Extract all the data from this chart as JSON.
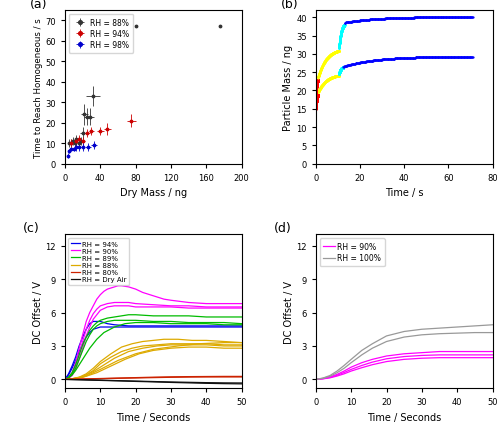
{
  "panel_a": {
    "rh88": {
      "x": [
        5,
        7,
        9,
        11,
        13,
        16,
        18,
        20,
        22,
        25,
        28,
        32,
        80,
        175
      ],
      "y": [
        10,
        10,
        11,
        10,
        12,
        10,
        11,
        15,
        24,
        23,
        23,
        33,
        67,
        67
      ],
      "xerr": [
        2,
        2,
        2,
        2,
        2,
        2,
        2,
        3,
        4,
        4,
        5,
        8,
        0,
        0
      ],
      "yerr": [
        2,
        2,
        2,
        2,
        2,
        2,
        2,
        3,
        5,
        4,
        4,
        5,
        0,
        0
      ],
      "color": "#333333",
      "label": "RH = 88%"
    },
    "rh94": {
      "x": [
        7,
        12,
        16,
        20,
        25,
        30,
        40,
        48,
        75
      ],
      "y": [
        10,
        11,
        12,
        11,
        15,
        16,
        16,
        17,
        21
      ],
      "xerr": [
        2,
        2,
        2,
        3,
        3,
        3,
        4,
        4,
        5
      ],
      "yerr": [
        2,
        2,
        2,
        2,
        2,
        2,
        2,
        3,
        3
      ],
      "color": "#cc0000",
      "label": "RH = 94%"
    },
    "rh98": {
      "x": [
        3,
        5,
        7,
        10,
        13,
        16,
        20,
        26,
        33
      ],
      "y": [
        4,
        6,
        7,
        7,
        8,
        8,
        8,
        8,
        9
      ],
      "xerr": [
        1,
        1,
        2,
        2,
        2,
        2,
        2,
        3,
        3
      ],
      "yerr": [
        1,
        1,
        1,
        1,
        2,
        2,
        2,
        2,
        2
      ],
      "color": "#0000cc",
      "label": "RH = 98%"
    },
    "xlabel": "Dry Mass / ng",
    "ylabel": "Time to Reach Homogeneous / s",
    "xlim": [
      0,
      200
    ],
    "ylim": [
      0,
      75
    ],
    "yticks": [
      0,
      10,
      20,
      30,
      40,
      50,
      60,
      70
    ],
    "xticks": [
      0,
      40,
      80,
      120,
      160,
      200
    ]
  },
  "panel_b": {
    "particle1_color_segments": [
      {
        "color": "#ff0000",
        "tstart": 0.0,
        "tend": 1.0,
        "mstart": 15.0,
        "mend": 19.5
      },
      {
        "color": "#ffff00",
        "tstart": 1.0,
        "tend": 10.5,
        "mstart": 19.5,
        "mend": 24.5
      },
      {
        "color": "#00ffff",
        "tstart": 10.5,
        "tend": 12.5,
        "mstart": 24.5,
        "mend": 26.5
      },
      {
        "color": "#0000ff",
        "tstart": 12.5,
        "tend": 71.0,
        "mstart": 26.5,
        "mend": 29.3
      }
    ],
    "particle2_color_segments": [
      {
        "color": "#ff0000",
        "tstart": 0.0,
        "tend": 1.0,
        "mstart": 19.0,
        "mend": 23.5
      },
      {
        "color": "#ffff00",
        "tstart": 1.0,
        "tend": 10.5,
        "mstart": 23.5,
        "mend": 31.5
      },
      {
        "color": "#00ffff",
        "tstart": 10.5,
        "tend": 13.0,
        "mstart": 31.5,
        "mend": 38.5
      },
      {
        "color": "#0000ff",
        "tstart": 13.0,
        "tend": 71.0,
        "mstart": 38.5,
        "mend": 40.1
      }
    ],
    "xlabel": "Time / s",
    "ylabel": "Particle Mass / ng",
    "xlim": [
      0,
      80
    ],
    "ylim": [
      0,
      42
    ],
    "yticks": [
      0,
      5,
      10,
      15,
      20,
      25,
      30,
      35,
      40
    ],
    "xticks": [
      0,
      20,
      40,
      60,
      80
    ]
  },
  "panel_c": {
    "curves": [
      {
        "color": "#0000ee",
        "label": "RH = 94%",
        "t": [
          0,
          1,
          2,
          3,
          4,
          5,
          6,
          7,
          8,
          9,
          10,
          11,
          12,
          14,
          16,
          18,
          20,
          25,
          30,
          35,
          40,
          45,
          50
        ],
        "v": [
          0,
          0.5,
          1.2,
          2.0,
          3.0,
          3.8,
          4.5,
          5.0,
          5.2,
          5.2,
          5.2,
          5.1,
          5.0,
          4.9,
          4.85,
          4.8,
          4.8,
          4.8,
          4.8,
          4.8,
          4.8,
          4.8,
          4.8
        ]
      },
      {
        "color": "#0000ee",
        "label": null,
        "t": [
          0,
          1,
          2,
          3,
          4,
          5,
          6,
          7,
          8,
          9,
          10,
          12,
          15,
          20,
          25,
          30,
          35,
          40,
          45,
          50
        ],
        "v": [
          0,
          0.4,
          1.0,
          1.7,
          2.5,
          3.2,
          3.8,
          4.2,
          4.5,
          4.6,
          4.7,
          4.7,
          4.7,
          4.7,
          4.7,
          4.7,
          4.7,
          4.7,
          4.7,
          4.7
        ]
      },
      {
        "color": "#ff00ff",
        "label": "RH = 90%",
        "t": [
          0,
          1,
          2,
          3,
          4,
          5,
          6,
          7,
          8,
          9,
          10,
          11,
          12,
          13,
          14,
          15,
          16,
          18,
          20,
          22,
          24,
          26,
          28,
          30,
          35,
          40,
          45,
          50
        ],
        "v": [
          0,
          0.2,
          0.6,
          1.5,
          2.8,
          4.0,
          5.2,
          6.0,
          6.6,
          7.2,
          7.6,
          7.9,
          8.1,
          8.2,
          8.3,
          8.4,
          8.4,
          8.3,
          8.1,
          7.8,
          7.6,
          7.4,
          7.2,
          7.1,
          6.9,
          6.8,
          6.8,
          6.8
        ]
      },
      {
        "color": "#ff00ff",
        "label": null,
        "t": [
          0,
          1,
          2,
          3,
          4,
          5,
          6,
          7,
          8,
          9,
          10,
          12,
          14,
          16,
          18,
          20,
          25,
          30,
          35,
          40,
          45,
          50
        ],
        "v": [
          0,
          0.15,
          0.5,
          1.2,
          2.2,
          3.4,
          4.5,
          5.3,
          5.9,
          6.3,
          6.6,
          6.8,
          6.9,
          6.9,
          6.9,
          6.8,
          6.7,
          6.6,
          6.6,
          6.5,
          6.5,
          6.5
        ]
      },
      {
        "color": "#ff00ff",
        "label": null,
        "t": [
          0,
          1,
          2,
          3,
          4,
          5,
          6,
          7,
          8,
          9,
          10,
          12,
          14,
          16,
          18,
          20,
          25,
          30,
          35,
          40,
          45,
          50
        ],
        "v": [
          0,
          0.1,
          0.35,
          0.9,
          1.8,
          2.8,
          3.9,
          4.7,
          5.4,
          5.8,
          6.2,
          6.5,
          6.6,
          6.6,
          6.6,
          6.5,
          6.5,
          6.5,
          6.4,
          6.4,
          6.4,
          6.4
        ]
      },
      {
        "color": "#00bb00",
        "label": "RH = 89%",
        "t": [
          0,
          1,
          2,
          3,
          4,
          5,
          6,
          7,
          8,
          9,
          10,
          12,
          14,
          16,
          18,
          20,
          25,
          30,
          35,
          40,
          45,
          50
        ],
        "v": [
          0,
          0.2,
          0.6,
          1.3,
          2.2,
          3.1,
          3.8,
          4.4,
          4.8,
          5.1,
          5.3,
          5.5,
          5.6,
          5.7,
          5.8,
          5.8,
          5.7,
          5.7,
          5.7,
          5.6,
          5.6,
          5.6
        ]
      },
      {
        "color": "#00bb00",
        "label": null,
        "t": [
          0,
          1,
          2,
          3,
          4,
          5,
          6,
          7,
          8,
          9,
          10,
          12,
          14,
          16,
          18,
          20,
          25,
          30,
          35,
          40,
          45,
          50
        ],
        "v": [
          0,
          0.15,
          0.45,
          1.0,
          1.8,
          2.6,
          3.4,
          4.0,
          4.5,
          4.8,
          5.0,
          5.2,
          5.3,
          5.3,
          5.3,
          5.3,
          5.2,
          5.2,
          5.1,
          5.1,
          5.1,
          5.0
        ]
      },
      {
        "color": "#00bb00",
        "label": null,
        "t": [
          0,
          1,
          2,
          3,
          5,
          7,
          9,
          11,
          14,
          17,
          20,
          25,
          30,
          35,
          40,
          45,
          50
        ],
        "v": [
          0,
          0.15,
          0.4,
          0.8,
          1.8,
          2.8,
          3.6,
          4.2,
          4.7,
          5.0,
          5.1,
          5.1,
          5.0,
          5.0,
          5.0,
          4.9,
          4.9
        ]
      },
      {
        "color": "#ddaa00",
        "label": "RH = 88%",
        "t": [
          0,
          2,
          4,
          6,
          8,
          10,
          13,
          16,
          19,
          22,
          25,
          28,
          32,
          36,
          40,
          45,
          50
        ],
        "v": [
          0,
          0.06,
          0.2,
          0.5,
          1.0,
          1.6,
          2.3,
          2.9,
          3.2,
          3.4,
          3.5,
          3.6,
          3.6,
          3.5,
          3.5,
          3.4,
          3.3
        ]
      },
      {
        "color": "#ddaa00",
        "label": null,
        "t": [
          0,
          2,
          4,
          6,
          8,
          10,
          13,
          16,
          19,
          22,
          26,
          30,
          35,
          40,
          45,
          50
        ],
        "v": [
          0,
          0.05,
          0.15,
          0.4,
          0.8,
          1.4,
          2.0,
          2.5,
          2.8,
          3.0,
          3.1,
          3.2,
          3.2,
          3.2,
          3.1,
          3.1
        ]
      },
      {
        "color": "#ddaa00",
        "label": null,
        "t": [
          0,
          2,
          5,
          8,
          11,
          14,
          18,
          22,
          26,
          30,
          35,
          40,
          45,
          50
        ],
        "v": [
          0,
          0.06,
          0.25,
          0.7,
          1.3,
          1.9,
          2.5,
          2.8,
          3.0,
          3.1,
          3.1,
          3.1,
          3.0,
          3.0
        ]
      },
      {
        "color": "#ddaa00",
        "label": null,
        "t": [
          0,
          2,
          5,
          9,
          13,
          17,
          21,
          25,
          30,
          35,
          40,
          45,
          50
        ],
        "v": [
          0,
          0.04,
          0.18,
          0.6,
          1.2,
          1.8,
          2.3,
          2.6,
          2.8,
          2.9,
          2.9,
          2.8,
          2.8
        ]
      },
      {
        "color": "#ddaa00",
        "label": null,
        "t": [
          0,
          3,
          6,
          10,
          15,
          20,
          25,
          32,
          38,
          45,
          50
        ],
        "v": [
          0,
          0.08,
          0.3,
          0.9,
          1.7,
          2.3,
          2.7,
          3.0,
          3.2,
          3.3,
          3.3
        ]
      },
      {
        "color": "#cc2200",
        "label": "RH = 80%",
        "t": [
          0,
          5,
          10,
          15,
          20,
          25,
          30,
          35,
          40,
          45,
          50
        ],
        "v": [
          0,
          0.04,
          0.08,
          0.12,
          0.16,
          0.2,
          0.23,
          0.25,
          0.26,
          0.27,
          0.27
        ]
      },
      {
        "color": "#cc2200",
        "label": null,
        "t": [
          0,
          5,
          10,
          15,
          20,
          25,
          30,
          35,
          40,
          45,
          50
        ],
        "v": [
          0,
          0.03,
          0.06,
          0.1,
          0.13,
          0.16,
          0.19,
          0.21,
          0.22,
          0.22,
          0.22
        ]
      },
      {
        "color": "#111111",
        "label": "RH = Dry Air",
        "t": [
          0,
          5,
          10,
          15,
          20,
          25,
          30,
          35,
          40,
          45,
          50
        ],
        "v": [
          0,
          -0.04,
          -0.09,
          -0.13,
          -0.18,
          -0.22,
          -0.27,
          -0.31,
          -0.35,
          -0.38,
          -0.4
        ]
      },
      {
        "color": "#111111",
        "label": null,
        "t": [
          0,
          5,
          10,
          15,
          20,
          25,
          30,
          35,
          40,
          45,
          50
        ],
        "v": [
          0,
          -0.03,
          -0.07,
          -0.11,
          -0.15,
          -0.19,
          -0.23,
          -0.26,
          -0.29,
          -0.31,
          -0.32
        ]
      }
    ],
    "xlabel": "Time / Seconds",
    "ylabel": "DC Offset / V",
    "xlim": [
      0,
      50
    ],
    "ylim": [
      -0.8,
      13
    ],
    "yticks": [
      0,
      3,
      6,
      9,
      12
    ],
    "xticks": [
      0,
      10,
      20,
      30,
      40,
      50
    ]
  },
  "panel_d": {
    "curves": [
      {
        "color": "#ff00ff",
        "label": "RH = 90%",
        "t": [
          0,
          2,
          4,
          6,
          8,
          10,
          13,
          16,
          20,
          25,
          30,
          35,
          40,
          45,
          50
        ],
        "v": [
          0,
          0.08,
          0.22,
          0.45,
          0.75,
          1.1,
          1.5,
          1.8,
          2.1,
          2.3,
          2.4,
          2.5,
          2.5,
          2.5,
          2.5
        ]
      },
      {
        "color": "#ff00ff",
        "label": null,
        "t": [
          0,
          2,
          4,
          6,
          8,
          10,
          13,
          16,
          20,
          25,
          30,
          35,
          40,
          45,
          50
        ],
        "v": [
          0,
          0.06,
          0.18,
          0.37,
          0.62,
          0.9,
          1.25,
          1.55,
          1.85,
          2.05,
          2.15,
          2.2,
          2.2,
          2.2,
          2.2
        ]
      },
      {
        "color": "#ff00ff",
        "label": null,
        "t": [
          0,
          2,
          4,
          6,
          8,
          10,
          13,
          16,
          20,
          25,
          30,
          35,
          40,
          45,
          50
        ],
        "v": [
          0,
          0.05,
          0.14,
          0.3,
          0.5,
          0.75,
          1.05,
          1.32,
          1.6,
          1.8,
          1.9,
          1.95,
          1.95,
          1.95,
          1.95
        ]
      },
      {
        "color": "#999999",
        "label": "RH = 100%",
        "t": [
          0,
          2,
          4,
          6,
          8,
          10,
          13,
          16,
          20,
          25,
          30,
          35,
          40,
          45,
          50
        ],
        "v": [
          0,
          0.12,
          0.35,
          0.75,
          1.25,
          1.8,
          2.6,
          3.2,
          3.9,
          4.3,
          4.5,
          4.6,
          4.7,
          4.8,
          4.9
        ]
      },
      {
        "color": "#999999",
        "label": null,
        "t": [
          0,
          2,
          4,
          6,
          8,
          10,
          13,
          16,
          20,
          25,
          30,
          35,
          40,
          45,
          50
        ],
        "v": [
          0,
          0.1,
          0.28,
          0.6,
          1.0,
          1.5,
          2.2,
          2.8,
          3.4,
          3.8,
          4.0,
          4.1,
          4.15,
          4.2,
          4.2
        ]
      }
    ],
    "xlabel": "Time / Seconds",
    "ylabel": "DC Offset / V",
    "xlim": [
      0,
      50
    ],
    "ylim": [
      -0.8,
      13
    ],
    "yticks": [
      0,
      3,
      6,
      9,
      12
    ],
    "xticks": [
      0,
      10,
      20,
      30,
      40,
      50
    ]
  }
}
